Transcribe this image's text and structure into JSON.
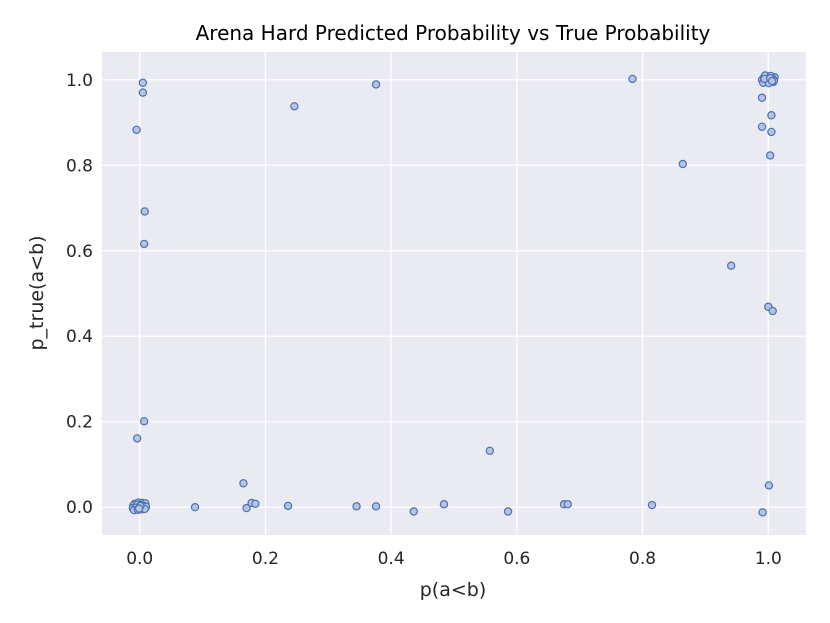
{
  "chart_data": {
    "type": "scatter",
    "title": "Arena Hard Predicted Probability vs True Probability",
    "xlabel": "p(a<b)",
    "ylabel": "p_true(a<b)",
    "xlim": [
      -0.06,
      1.06
    ],
    "ylim": [
      -0.065,
      1.065
    ],
    "x_ticks": [
      0.0,
      0.2,
      0.4,
      0.6,
      0.8,
      1.0
    ],
    "x_tick_labels": [
      "0.0",
      "0.2",
      "0.4",
      "0.6",
      "0.8",
      "1.0"
    ],
    "y_ticks": [
      0.0,
      0.2,
      0.4,
      0.6,
      0.8,
      1.0
    ],
    "y_tick_labels": [
      "0.0",
      "0.2",
      "0.4",
      "0.6",
      "0.8",
      "1.0"
    ],
    "grid": true,
    "legend": null,
    "colors": {
      "background": "#eaeaf2",
      "grid": "#ffffff",
      "marker_fill": "#b4c4e3",
      "marker_edge": "#4c72b0"
    },
    "series": [
      {
        "points": [
          [
            0.005,
            0.993
          ],
          [
            0.005,
            0.97
          ],
          [
            -0.005,
            0.883
          ],
          [
            0.008,
            0.692
          ],
          [
            0.007,
            0.616
          ],
          [
            0.007,
            0.201
          ],
          [
            -0.004,
            0.161
          ],
          [
            -0.008,
            0.008
          ],
          [
            -0.002,
            0.011
          ],
          [
            0.004,
            0.01
          ],
          [
            0.009,
            0.009
          ],
          [
            -0.01,
            0.004
          ],
          [
            -0.004,
            0.006
          ],
          [
            0.002,
            0.005
          ],
          [
            0.007,
            0.003
          ],
          [
            -0.011,
            -0.002
          ],
          [
            -0.006,
            -0.001
          ],
          [
            0.0,
            0.0
          ],
          [
            0.005,
            -0.002
          ],
          [
            0.01,
            0.001
          ],
          [
            -0.009,
            -0.007
          ],
          [
            -0.003,
            -0.006
          ],
          [
            0.003,
            -0.005
          ],
          [
            0.008,
            -0.004
          ],
          [
            0.001,
            0.003
          ],
          [
            -0.001,
            -0.003
          ],
          [
            0.088,
            0.0
          ],
          [
            0.165,
            0.056
          ],
          [
            0.17,
            -0.002
          ],
          [
            0.178,
            0.01
          ],
          [
            0.184,
            0.008
          ],
          [
            0.236,
            0.003
          ],
          [
            0.246,
            0.938
          ],
          [
            0.345,
            0.002
          ],
          [
            0.376,
            0.989
          ],
          [
            0.376,
            0.002
          ],
          [
            0.436,
            -0.01
          ],
          [
            0.484,
            0.007
          ],
          [
            0.557,
            0.132
          ],
          [
            0.586,
            -0.01
          ],
          [
            0.675,
            0.007
          ],
          [
            0.681,
            0.007
          ],
          [
            0.784,
            1.002
          ],
          [
            0.815,
            0.005
          ],
          [
            0.864,
            0.803
          ],
          [
            0.941,
            0.565
          ],
          [
            0.99,
            0.958
          ],
          [
            0.99,
            0.89
          ],
          [
            1.005,
            0.917
          ],
          [
            1.005,
            0.878
          ],
          [
            1.003,
            0.823
          ],
          [
            1.0,
            0.469
          ],
          [
            1.007,
            0.459
          ],
          [
            1.001,
            0.051
          ],
          [
            0.991,
            -0.012
          ],
          [
            0.99,
            1.0
          ],
          [
            0.993,
            1.005
          ],
          [
            0.996,
            0.996
          ],
          [
            0.999,
            1.008
          ],
          [
            1.002,
            0.999
          ],
          [
            1.005,
            1.003
          ],
          [
            1.008,
            0.995
          ],
          [
            1.01,
            1.006
          ],
          [
            0.992,
            0.993
          ],
          [
            0.995,
            1.01
          ],
          [
            0.998,
            1.001
          ],
          [
            1.001,
            0.992
          ],
          [
            1.004,
            1.009
          ],
          [
            1.007,
            1.002
          ],
          [
            1.009,
            0.998
          ],
          [
            0.994,
            1.002
          ],
          [
            1.003,
            1.004
          ],
          [
            1.006,
            0.997
          ]
        ]
      }
    ]
  }
}
